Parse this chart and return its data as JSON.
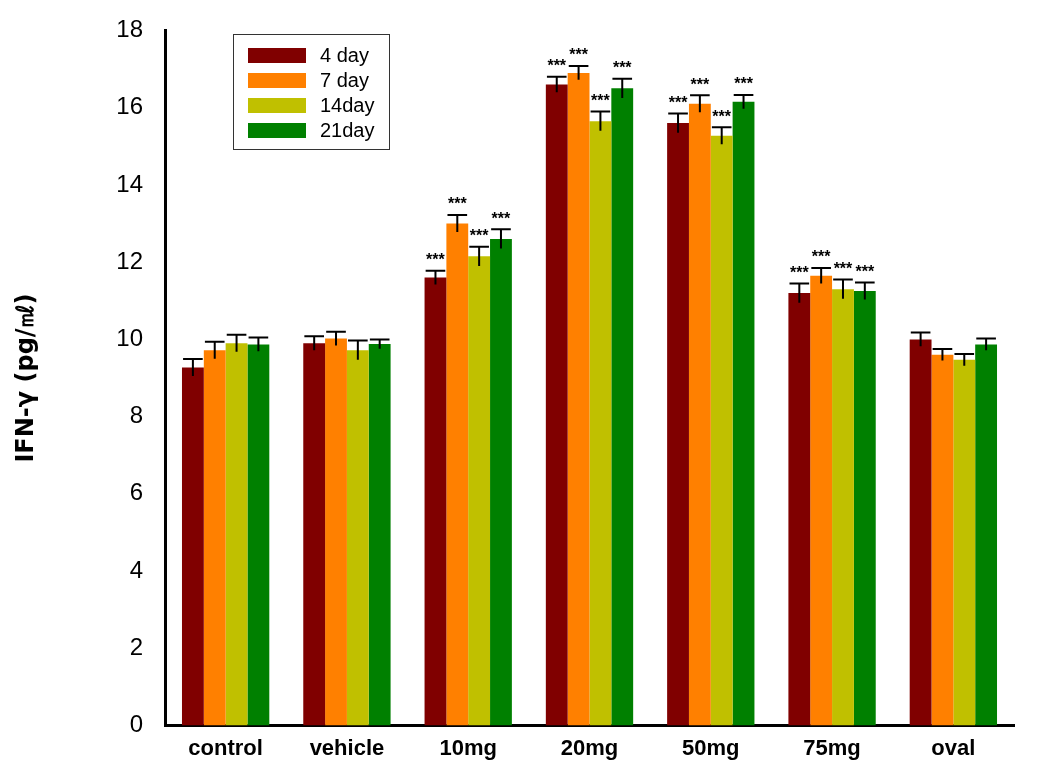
{
  "chart_data": {
    "type": "bar",
    "ylabel": "IFN-γ (pg/㎖)",
    "categories": [
      "control",
      "vehicle",
      "10mg",
      "20mg",
      "50mg",
      "75mg",
      "oval"
    ],
    "series": [
      {
        "name": "4 day",
        "color": "#800000",
        "values": [
          9.27,
          9.9,
          11.6,
          16.6,
          15.6,
          11.2,
          10.0
        ],
        "errors": [
          0.22,
          0.18,
          0.18,
          0.2,
          0.25,
          0.25,
          0.18
        ]
      },
      {
        "name": "7 day",
        "color": "#ff8000",
        "values": [
          9.72,
          10.02,
          13.0,
          16.9,
          16.1,
          11.65,
          9.6
        ],
        "errors": [
          0.22,
          0.18,
          0.22,
          0.18,
          0.22,
          0.2,
          0.15
        ]
      },
      {
        "name": "14day",
        "color": "#c0c000",
        "values": [
          9.9,
          9.72,
          12.15,
          15.65,
          15.27,
          11.3,
          9.47
        ],
        "errors": [
          0.22,
          0.25,
          0.25,
          0.25,
          0.22,
          0.25,
          0.15
        ]
      },
      {
        "name": "21day",
        "color": "#008000",
        "values": [
          9.87,
          9.88,
          12.6,
          16.5,
          16.15,
          11.25,
          9.87
        ],
        "errors": [
          0.18,
          0.12,
          0.25,
          0.25,
          0.18,
          0.22,
          0.15
        ]
      }
    ],
    "ylim": [
      0,
      18
    ],
    "yticks": [
      0,
      2,
      4,
      6,
      8,
      10,
      12,
      14,
      16,
      18
    ],
    "grid": false,
    "legend": "top left",
    "annotations": [
      {
        "text": "***",
        "x": "10mg",
        "y": 11.78
      },
      {
        "text": "***",
        "x": "10mg",
        "y": 13.22
      },
      {
        "text": "***",
        "x": "10mg",
        "y": 12.4
      },
      {
        "text": "***",
        "x": "10mg",
        "y": 12.85
      },
      {
        "text": "***",
        "x": "20mg",
        "y": 16.8
      },
      {
        "text": "***",
        "x": "20mg",
        "y": 17.08
      },
      {
        "text": "***",
        "x": "20mg",
        "y": 15.9
      },
      {
        "text": "***",
        "x": "20mg",
        "y": 16.75
      },
      {
        "text": "***",
        "x": "50mg",
        "y": 15.85
      },
      {
        "text": "***",
        "x": "50mg",
        "y": 16.32
      },
      {
        "text": "***",
        "x": "50mg",
        "y": 15.49
      },
      {
        "text": "***",
        "x": "50mg",
        "y": 16.33
      },
      {
        "text": "***",
        "x": "75mg",
        "y": 11.45
      },
      {
        "text": "***",
        "x": "75mg",
        "y": 11.85
      },
      {
        "text": "***",
        "x": "75mg",
        "y": 11.55
      },
      {
        "text": "***",
        "x": "75mg",
        "y": 11.47
      }
    ]
  }
}
